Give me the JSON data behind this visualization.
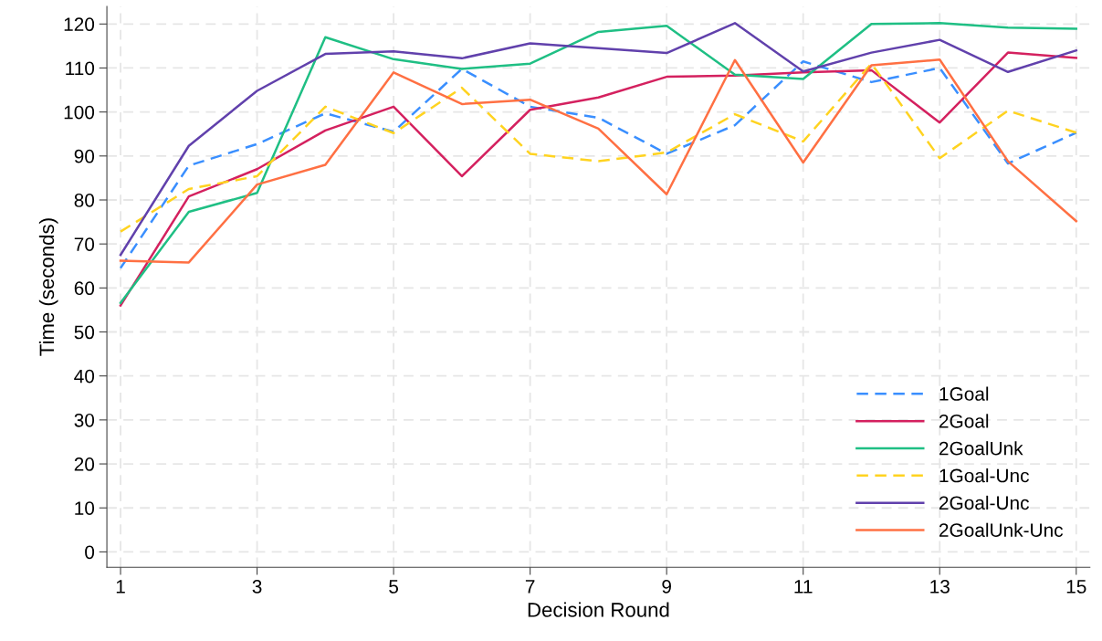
{
  "chart_data": {
    "type": "line",
    "xlabel": "Decision Round",
    "ylabel": "Time (seconds)",
    "x": [
      1,
      2,
      3,
      4,
      5,
      6,
      7,
      8,
      9,
      10,
      11,
      12,
      13,
      14,
      15
    ],
    "xlim": [
      0.8,
      15.2
    ],
    "xticks": [
      1,
      3,
      5,
      7,
      9,
      11,
      13,
      15
    ],
    "ylim": [
      -3.5,
      124
    ],
    "yticks": [
      0,
      10,
      20,
      30,
      40,
      50,
      60,
      70,
      80,
      90,
      100,
      110,
      120
    ],
    "grid": true,
    "legend": "bottom right",
    "series": [
      {
        "name": "1Goal",
        "color": "#3a8fff",
        "line_style": "dashed",
        "values": [
          64.5,
          87.8,
          92.7,
          99.7,
          95.5,
          109.8,
          101.2,
          98.7,
          90.5,
          97,
          111.5,
          106.8,
          110,
          88.3,
          95.3
        ]
      },
      {
        "name": "2Goal",
        "color": "#d4215f",
        "line_style": "solid",
        "values": [
          56,
          80.8,
          87,
          95.8,
          101.2,
          85.4,
          100.5,
          103.3,
          108,
          108.3,
          109,
          109.5,
          97.6,
          113.5,
          112.3
        ]
      },
      {
        "name": "2GoalUnk",
        "color": "#1fbf84",
        "line_style": "solid",
        "values": [
          56.6,
          77.3,
          81.6,
          117,
          112,
          109.8,
          111,
          118.2,
          119.6,
          108.5,
          107.5,
          120,
          120.2,
          119.2,
          118.9
        ]
      },
      {
        "name": "1Goal-Unc",
        "color": "#ffd320",
        "line_style": "dashed",
        "values": [
          72.8,
          82.5,
          85.4,
          101.2,
          95.2,
          105.5,
          90.5,
          88.8,
          90.8,
          99.5,
          93.3,
          111,
          89.5,
          100.3,
          95.3
        ]
      },
      {
        "name": "2Goal-Unc",
        "color": "#6141ac",
        "line_style": "solid",
        "values": [
          67.5,
          92.3,
          104.8,
          113.2,
          113.8,
          112.2,
          115.6,
          114.5,
          113.4,
          120.2,
          109.2,
          113.5,
          116.4,
          109.1,
          114
        ]
      },
      {
        "name": "2GoalUnk-Unc",
        "color": "#ff7043",
        "line_style": "solid",
        "values": [
          66.2,
          65.8,
          83.5,
          88,
          109,
          101.8,
          102.8,
          96.2,
          81.3,
          111.8,
          88.5,
          110.6,
          111.9,
          88.8,
          75.2
        ]
      }
    ]
  }
}
